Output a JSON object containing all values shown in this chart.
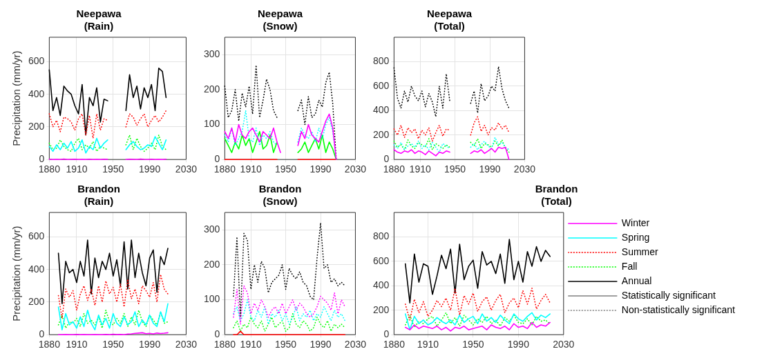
{
  "chart_data": [
    {
      "type": "line",
      "title": "Neepawa\n(Rain)",
      "ylabel": "Precipitation (mm/yr)",
      "x": [
        1880,
        1884,
        1888,
        1892,
        1896,
        1900,
        1904,
        1908,
        1912,
        1916,
        1920,
        1924,
        1928,
        1932,
        1936,
        1940,
        1944,
        1948,
        1952,
        1956,
        1960,
        1964,
        1968,
        1972,
        1976,
        1980,
        1984,
        1988,
        1992,
        1996,
        2000,
        2004,
        2008
      ],
      "xlim": [
        1880,
        2030
      ],
      "xticks": [
        1880,
        1910,
        1950,
        1990,
        2030
      ],
      "ylim": [
        0,
        750
      ],
      "yticks": [
        0,
        200,
        400,
        600
      ],
      "grid": true,
      "series": [
        {
          "color": "#ff00ff",
          "line_style": "solid",
          "values": [
            2,
            0,
            1,
            0,
            3,
            0,
            1,
            2,
            0,
            1,
            0,
            2,
            0,
            1,
            0,
            2,
            1,
            null,
            null,
            null,
            null,
            0,
            2,
            1,
            0,
            3,
            1,
            0,
            2,
            0,
            1,
            0,
            2
          ]
        },
        {
          "color": "#00ffff",
          "line_style": "solid",
          "values": [
            80,
            50,
            90,
            60,
            100,
            70,
            110,
            50,
            70,
            120,
            40,
            80,
            60,
            130,
            70,
            100,
            120,
            null,
            null,
            null,
            null,
            60,
            90,
            110,
            80,
            60,
            70,
            90,
            80,
            140,
            100,
            60,
            120
          ]
        },
        {
          "color": "#ff0000",
          "line_style": "dotted",
          "values": [
            280,
            200,
            240,
            170,
            260,
            250,
            230,
            180,
            250,
            280,
            150,
            270,
            130,
            280,
            180,
            250,
            240,
            null,
            null,
            null,
            null,
            200,
            280,
            260,
            210,
            250,
            280,
            200,
            240,
            270,
            230,
            260,
            300
          ]
        },
        {
          "color": "#00ff00",
          "line_style": "dotted",
          "values": [
            100,
            60,
            70,
            120,
            80,
            60,
            50,
            100,
            130,
            60,
            90,
            70,
            110,
            50,
            80,
            70,
            60,
            null,
            null,
            null,
            null,
            90,
            150,
            60,
            130,
            80,
            50,
            70,
            100,
            60,
            150,
            80,
            60
          ]
        },
        {
          "color": "#000000",
          "line_style": "solid",
          "values": [
            550,
            300,
            380,
            270,
            450,
            420,
            400,
            330,
            280,
            460,
            150,
            380,
            330,
            440,
            230,
            370,
            360,
            null,
            null,
            null,
            null,
            300,
            520,
            380,
            450,
            310,
            440,
            380,
            460,
            300,
            560,
            540,
            380
          ]
        }
      ]
    },
    {
      "type": "line",
      "title": "Neepawa\n(Snow)",
      "x": [
        1880,
        1884,
        1888,
        1892,
        1896,
        1900,
        1904,
        1908,
        1912,
        1916,
        1920,
        1924,
        1928,
        1932,
        1936,
        1940,
        1944,
        1948,
        1952,
        1956,
        1960,
        1964,
        1968,
        1972,
        1976,
        1980,
        1984,
        1988,
        1992,
        1996,
        2000,
        2004,
        2008
      ],
      "xlim": [
        1880,
        2030
      ],
      "xticks": [
        1880,
        1910,
        1950,
        1990,
        2030
      ],
      "ylim": [
        0,
        350
      ],
      "yticks": [
        0,
        100,
        200,
        300
      ],
      "grid": true,
      "series": [
        {
          "color": "#ff00ff",
          "line_style": "solid",
          "values": [
            80,
            60,
            90,
            50,
            100,
            70,
            60,
            80,
            90,
            70,
            50,
            80,
            70,
            60,
            90,
            50,
            20,
            null,
            null,
            null,
            null,
            40,
            80,
            60,
            100,
            70,
            60,
            50,
            80,
            110,
            130,
            90,
            0
          ]
        },
        {
          "color": "#00ffff",
          "line_style": "dotted",
          "values": [
            70,
            50,
            90,
            40,
            60,
            80,
            140,
            60,
            50,
            90,
            40,
            70,
            60,
            80,
            50,
            40,
            null,
            null,
            null,
            null,
            null,
            50,
            90,
            70,
            60,
            80,
            50,
            90,
            60,
            100,
            120,
            80,
            0
          ]
        },
        {
          "color": "#ff0000",
          "line_style": "solid",
          "values": [
            0,
            0,
            0,
            0,
            0,
            0,
            0,
            0,
            0,
            0,
            0,
            0,
            0,
            0,
            0,
            0,
            null,
            null,
            null,
            null,
            null,
            0,
            0,
            0,
            0,
            0,
            0,
            0,
            0,
            0,
            0,
            0,
            0
          ]
        },
        {
          "color": "#00ff00",
          "line_style": "solid",
          "values": [
            60,
            40,
            20,
            50,
            30,
            70,
            40,
            60,
            20,
            50,
            80,
            30,
            40,
            70,
            20,
            50,
            null,
            null,
            null,
            null,
            null,
            20,
            30,
            50,
            20,
            40,
            60,
            30,
            70,
            20,
            50,
            30,
            0
          ]
        },
        {
          "color": "#000000",
          "line_style": "dotted",
          "values": [
            210,
            120,
            140,
            200,
            110,
            190,
            150,
            210,
            130,
            270,
            120,
            170,
            230,
            200,
            140,
            120,
            null,
            null,
            null,
            null,
            null,
            140,
            170,
            100,
            180,
            120,
            130,
            170,
            150,
            220,
            250,
            160,
            0
          ]
        }
      ]
    },
    {
      "type": "line",
      "title": "Neepawa\n(Total)",
      "x": [
        1880,
        1884,
        1888,
        1892,
        1896,
        1900,
        1904,
        1908,
        1912,
        1916,
        1920,
        1924,
        1928,
        1932,
        1936,
        1940,
        1944,
        1948,
        1952,
        1956,
        1960,
        1964,
        1968,
        1972,
        1976,
        1980,
        1984,
        1988,
        1992,
        1996,
        2000,
        2004,
        2008,
        2012
      ],
      "xlim": [
        1880,
        2030
      ],
      "xticks": [
        1880,
        1910,
        1950,
        1990,
        2030
      ],
      "ylim": [
        0,
        1000
      ],
      "yticks": [
        0,
        200,
        400,
        600,
        800
      ],
      "grid": true,
      "series": [
        {
          "color": "#ff00ff",
          "line_style": "solid",
          "values": [
            80,
            60,
            50,
            70,
            60,
            80,
            50,
            70,
            60,
            40,
            70,
            50,
            30,
            60,
            50,
            70,
            60,
            null,
            null,
            null,
            null,
            null,
            50,
            70,
            60,
            80,
            50,
            70,
            90,
            60,
            100,
            90,
            100,
            0
          ]
        },
        {
          "color": "#00ffff",
          "line_style": "dotted",
          "values": [
            120,
            90,
            140,
            80,
            110,
            130,
            100,
            150,
            90,
            120,
            80,
            140,
            100,
            60,
            130,
            110,
            90,
            null,
            null,
            null,
            null,
            null,
            100,
            130,
            80,
            120,
            150,
            110,
            90,
            180,
            120,
            140,
            100,
            80
          ]
        },
        {
          "color": "#ff0000",
          "line_style": "dotted",
          "values": [
            250,
            200,
            280,
            180,
            260,
            220,
            250,
            170,
            240,
            200,
            260,
            150,
            220,
            280,
            190,
            250,
            240,
            null,
            null,
            null,
            null,
            null,
            200,
            300,
            350,
            230,
            280,
            200,
            260,
            240,
            300,
            250,
            280,
            220
          ]
        },
        {
          "color": "#00ff00",
          "line_style": "dotted",
          "values": [
            150,
            100,
            120,
            80,
            160,
            110,
            90,
            140,
            120,
            100,
            170,
            80,
            130,
            110,
            90,
            120,
            100,
            null,
            null,
            null,
            null,
            null,
            140,
            110,
            170,
            90,
            130,
            120,
            100,
            150,
            110,
            160,
            90,
            60
          ]
        },
        {
          "color": "#000000",
          "line_style": "dotted",
          "values": [
            750,
            500,
            420,
            560,
            470,
            600,
            520,
            480,
            560,
            430,
            540,
            470,
            350,
            600,
            420,
            700,
            480,
            null,
            null,
            null,
            null,
            null,
            460,
            560,
            380,
            620,
            480,
            520,
            600,
            560,
            760,
            580,
            480,
            420
          ]
        }
      ]
    },
    {
      "type": "line",
      "title": "Brandon\n(Rain)",
      "ylabel": "Precipitation (mm/yr)",
      "x": [
        1890,
        1894,
        1898,
        1902,
        1906,
        1910,
        1914,
        1918,
        1922,
        1926,
        1930,
        1934,
        1938,
        1942,
        1946,
        1950,
        1954,
        1958,
        1962,
        1966,
        1970,
        1974,
        1978,
        1982,
        1986,
        1990,
        1994,
        1998,
        2002,
        2006,
        2010
      ],
      "xlim": [
        1880,
        2030
      ],
      "xticks": [
        1880,
        1910,
        1950,
        1990,
        2030
      ],
      "ylim": [
        0,
        750
      ],
      "yticks": [
        0,
        200,
        400,
        600
      ],
      "grid": true,
      "series": [
        {
          "color": "#ff00ff",
          "line_style": "solid",
          "values": [
            0,
            0,
            1,
            0,
            0,
            2,
            0,
            1,
            0,
            0,
            1,
            0,
            0,
            2,
            0,
            3,
            1,
            2,
            0,
            4,
            5,
            8,
            10,
            12,
            6,
            8,
            5,
            10,
            7,
            9,
            12
          ]
        },
        {
          "color": "#00ffff",
          "line_style": "solid",
          "values": [
            170,
            30,
            130,
            60,
            80,
            40,
            110,
            50,
            150,
            70,
            30,
            120,
            60,
            100,
            40,
            130,
            70,
            50,
            110,
            60,
            80,
            140,
            50,
            90,
            60,
            120,
            70,
            50,
            140,
            80,
            190
          ]
        },
        {
          "color": "#ff0000",
          "line_style": "dotted",
          "values": [
            240,
            100,
            280,
            230,
            270,
            150,
            250,
            300,
            210,
            280,
            180,
            300,
            200,
            330,
            250,
            290,
            200,
            310,
            170,
            340,
            220,
            280,
            190,
            300,
            270,
            230,
            320,
            200,
            370,
            280,
            250
          ]
        },
        {
          "color": "#00ff00",
          "line_style": "dotted",
          "values": [
            60,
            120,
            40,
            80,
            70,
            100,
            50,
            130,
            70,
            90,
            60,
            110,
            40,
            150,
            80,
            60,
            100,
            70,
            130,
            50,
            110,
            60,
            150,
            80,
            50,
            120,
            90,
            60,
            140,
            70,
            80
          ]
        },
        {
          "color": "#000000",
          "line_style": "solid",
          "values": [
            500,
            190,
            450,
            380,
            400,
            320,
            450,
            360,
            580,
            250,
            470,
            350,
            450,
            400,
            500,
            360,
            460,
            300,
            570,
            280,
            580,
            350,
            500,
            380,
            300,
            470,
            520,
            260,
            480,
            430,
            530
          ]
        }
      ]
    },
    {
      "type": "line",
      "title": "Brandon\n(Snow)",
      "x": [
        1890,
        1894,
        1898,
        1902,
        1906,
        1910,
        1914,
        1918,
        1922,
        1926,
        1930,
        1934,
        1938,
        1942,
        1946,
        1950,
        1954,
        1958,
        1962,
        1966,
        1970,
        1974,
        1978,
        1982,
        1986,
        1990,
        1994,
        1998,
        2002,
        2006,
        2010,
        2014,
        2018
      ],
      "xlim": [
        1880,
        2030
      ],
      "xticks": [
        1880,
        1910,
        1950,
        1990,
        2030
      ],
      "ylim": [
        0,
        350
      ],
      "yticks": [
        0,
        100,
        200,
        300
      ],
      "grid": true,
      "series": [
        {
          "color": "#ff00ff",
          "line_style": "dotted",
          "values": [
            50,
            130,
            30,
            140,
            120,
            60,
            90,
            70,
            100,
            80,
            50,
            70,
            80,
            60,
            90,
            60,
            80,
            100,
            70,
            90,
            80,
            60,
            50,
            60,
            80,
            110,
            100,
            90,
            70,
            120,
            60,
            100,
            80
          ]
        },
        {
          "color": "#00ffff",
          "line_style": "dotted",
          "values": [
            60,
            80,
            40,
            60,
            100,
            50,
            40,
            70,
            50,
            80,
            30,
            60,
            50,
            70,
            40,
            60,
            30,
            50,
            80,
            40,
            60,
            50,
            70,
            40,
            60,
            50,
            80,
            60,
            40,
            70,
            50,
            60,
            40
          ]
        },
        {
          "color": "#ff0000",
          "line_style": "solid",
          "values": [
            0,
            0,
            10,
            0,
            0,
            0,
            0,
            0,
            0,
            0,
            0,
            0,
            0,
            0,
            0,
            0,
            0,
            0,
            0,
            0,
            0,
            0,
            0,
            0,
            0,
            0,
            0,
            0,
            0,
            0,
            0,
            0,
            0
          ]
        },
        {
          "color": "#00ff00",
          "line_style": "dotted",
          "values": [
            20,
            40,
            10,
            30,
            20,
            50,
            30,
            20,
            40,
            10,
            30,
            50,
            20,
            30,
            40,
            10,
            20,
            60,
            30,
            20,
            40,
            30,
            10,
            20,
            50,
            30,
            20,
            40,
            10,
            30,
            20,
            30,
            20
          ]
        },
        {
          "color": "#000000",
          "line_style": "dotted",
          "values": [
            110,
            280,
            50,
            290,
            270,
            130,
            200,
            150,
            210,
            190,
            120,
            150,
            160,
            170,
            200,
            130,
            190,
            170,
            160,
            180,
            150,
            140,
            110,
            100,
            220,
            320,
            190,
            200,
            150,
            160,
            140,
            150,
            140
          ]
        }
      ]
    },
    {
      "type": "line",
      "title": "Brandon\n(Total)",
      "legend": "right",
      "x": [
        1890,
        1894,
        1898,
        1902,
        1906,
        1910,
        1914,
        1918,
        1922,
        1926,
        1930,
        1934,
        1938,
        1942,
        1946,
        1950,
        1954,
        1958,
        1962,
        1966,
        1970,
        1974,
        1978,
        1982,
        1986,
        1990,
        1994,
        1998,
        2002,
        2006,
        2010,
        2014,
        2018
      ],
      "xlim": [
        1880,
        2030
      ],
      "xticks": [
        1880,
        1910,
        1950,
        1990,
        2030
      ],
      "ylim": [
        0,
        1000
      ],
      "yticks": [
        0,
        200,
        400,
        600,
        800
      ],
      "grid": true,
      "series": [
        {
          "name": "Winter",
          "color": "#ff00ff",
          "line_style": "solid",
          "values": [
            60,
            40,
            80,
            50,
            70,
            60,
            50,
            70,
            40,
            60,
            30,
            60,
            50,
            70,
            40,
            50,
            60,
            70,
            40,
            80,
            60,
            50,
            70,
            40,
            90,
            60,
            70,
            50,
            100,
            60,
            80,
            70,
            100
          ]
        },
        {
          "name": "Spring",
          "color": "#00ffff",
          "line_style": "solid",
          "values": [
            170,
            40,
            150,
            90,
            120,
            80,
            100,
            140,
            110,
            90,
            120,
            80,
            160,
            100,
            130,
            150,
            90,
            170,
            110,
            140,
            100,
            160,
            120,
            90,
            170,
            130,
            110,
            150,
            180,
            120,
            160,
            140,
            170
          ]
        },
        {
          "name": "Summer",
          "color": "#ff0000",
          "line_style": "dotted",
          "values": [
            250,
            120,
            290,
            180,
            270,
            150,
            200,
            280,
            230,
            300,
            200,
            380,
            160,
            320,
            250,
            340,
            190,
            270,
            310,
            200,
            280,
            330,
            180,
            260,
            300,
            220,
            360,
            250,
            380,
            210,
            280,
            330,
            260
          ]
        },
        {
          "name": "Fall",
          "color": "#00ff00",
          "line_style": "dotted",
          "values": [
            80,
            160,
            60,
            110,
            90,
            130,
            150,
            70,
            120,
            180,
            90,
            140,
            70,
            160,
            120,
            80,
            130,
            100,
            150,
            90,
            120,
            70,
            140,
            110,
            160,
            100,
            90,
            130,
            80,
            150,
            110,
            120,
            90
          ]
        },
        {
          "name": "Annual",
          "color": "#000000",
          "line_style": "solid",
          "values": [
            580,
            260,
            660,
            430,
            580,
            560,
            330,
            480,
            650,
            540,
            700,
            340,
            740,
            450,
            560,
            610,
            380,
            680,
            570,
            600,
            500,
            660,
            420,
            780,
            450,
            600,
            430,
            680,
            560,
            720,
            600,
            690,
            640
          ]
        },
        {
          "name": "Statistically significant",
          "color": "#808080",
          "line_style": "solid",
          "values": [
            null,
            null,
            null,
            null,
            null,
            null,
            null,
            null,
            null,
            null,
            null,
            null,
            null,
            null,
            null,
            null,
            null,
            null,
            null,
            null,
            null,
            null,
            null,
            null,
            null,
            null,
            null,
            null,
            null,
            null,
            null,
            null,
            null
          ]
        },
        {
          "name": "Non-statistically significant",
          "color": "#808080",
          "line_style": "dotted",
          "values": [
            null,
            null,
            null,
            null,
            null,
            null,
            null,
            null,
            null,
            null,
            null,
            null,
            null,
            null,
            null,
            null,
            null,
            null,
            null,
            null,
            null,
            null,
            null,
            null,
            null,
            null,
            null,
            null,
            null,
            null,
            null,
            null,
            null
          ]
        }
      ]
    }
  ]
}
